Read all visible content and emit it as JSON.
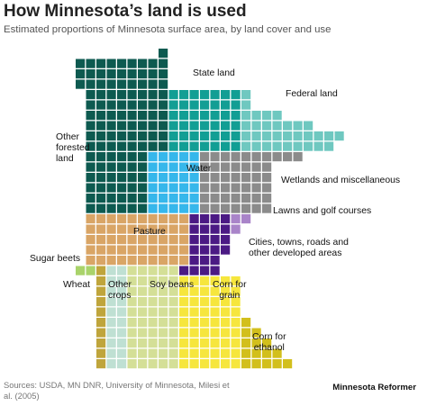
{
  "title": "How Minnesota’s land is used",
  "subtitle": "Estimated proportions of Minnesota surface area, by land cover and use",
  "sources": "Sources: USDA, MN DNR, University of Minnesota, Milesi et al. (2005)",
  "brand": "Minnesota Reformer",
  "chart_data": {
    "type": "waffle-map",
    "title": "How Minnesota’s land is used",
    "subtitle": "Estimated proportions of Minnesota surface area, by land cover and use",
    "categories": [
      {
        "name": "Other forested land",
        "label": "Other\nforested\nland",
        "color": "#0d5a50"
      },
      {
        "name": "State land",
        "label": "State land",
        "color": "#129e94"
      },
      {
        "name": "Federal land",
        "label": "Federal land",
        "color": "#6fc8c0"
      },
      {
        "name": "Water",
        "label": "Water",
        "color": "#36b7eb"
      },
      {
        "name": "Wetlands and miscellaneous",
        "label": "Wetlands and miscellaneous",
        "color": "#8b8b8b"
      },
      {
        "name": "Lawns and golf courses",
        "label": "Lawns and golf courses",
        "color": "#a984c9"
      },
      {
        "name": "Cities, towns, roads and other developed areas",
        "label": "Cities, towns, roads and\nother developed areas",
        "color": "#4b1a84"
      },
      {
        "name": "Pasture",
        "label": "Pasture",
        "color": "#d9a566"
      },
      {
        "name": "Sugar beets",
        "label": "Sugar beets",
        "color": "#a9d36a"
      },
      {
        "name": "Wheat",
        "label": "Wheat",
        "color": "#bfa53c"
      },
      {
        "name": "Other crops",
        "label": "Other\ncrops",
        "color": "#bfe0d3"
      },
      {
        "name": "Soy beans",
        "label": "Soy beans",
        "color": "#d4df97"
      },
      {
        "name": "Corn for grain",
        "label": "Corn for\ngrain",
        "color": "#f6e63d"
      },
      {
        "name": "Corn for ethanol",
        "label": "Corn for\nethanol",
        "color": "#d2bf1c"
      }
    ]
  }
}
